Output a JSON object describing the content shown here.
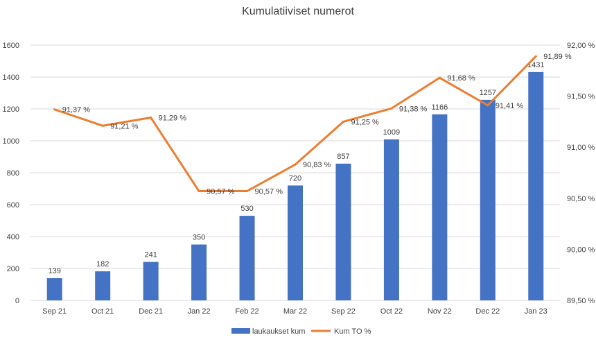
{
  "chart_data": {
    "type": "bar",
    "title": "Kumulatiiviset numerot",
    "categories": [
      "Sep 21",
      "Oct 21",
      "Dec 21",
      "Jan 22",
      "Feb 22",
      "Mar 22",
      "Sep 22",
      "Oct 22",
      "Nov 22",
      "Dec 22",
      "Jan 23"
    ],
    "series": [
      {
        "name": "laukaukset kum",
        "type": "bar",
        "axis": "left",
        "color": "#4472c4",
        "values": [
          139,
          182,
          241,
          350,
          530,
          720,
          857,
          1009,
          1166,
          1257,
          1431
        ],
        "labels": [
          "139",
          "182",
          "241",
          "350",
          "530",
          "720",
          "857",
          "1009",
          "1166",
          "1257",
          "1431"
        ]
      },
      {
        "name": "Kum TO %",
        "type": "line",
        "axis": "right",
        "color": "#ed7d31",
        "values": [
          91.37,
          91.21,
          91.29,
          90.57,
          90.57,
          90.83,
          91.25,
          91.38,
          91.68,
          91.41,
          91.89
        ],
        "labels": [
          "91,37 %",
          "91,21 %",
          "91,29 %",
          "90,57 %",
          "90,57 %",
          "90,83 %",
          "91,25 %",
          "91,38 %",
          "91,68 %",
          "91,41 %",
          "91,89 %"
        ]
      }
    ],
    "y_left": {
      "lim": [
        0,
        1600
      ],
      "ticks": [
        0,
        200,
        400,
        600,
        800,
        1000,
        1200,
        1400,
        1600
      ],
      "tick_labels": [
        "0",
        "200",
        "400",
        "600",
        "800",
        "1000",
        "1200",
        "1400",
        "1600"
      ]
    },
    "y_right": {
      "lim": [
        89.5,
        92.0
      ],
      "ticks": [
        89.5,
        90.0,
        90.5,
        91.0,
        91.5,
        92.0
      ],
      "tick_labels": [
        "89,50 %",
        "90,00 %",
        "90,50 %",
        "91,00 %",
        "91,50 %",
        "92,00 %"
      ]
    },
    "grid": true,
    "legend_position": "bottom"
  }
}
